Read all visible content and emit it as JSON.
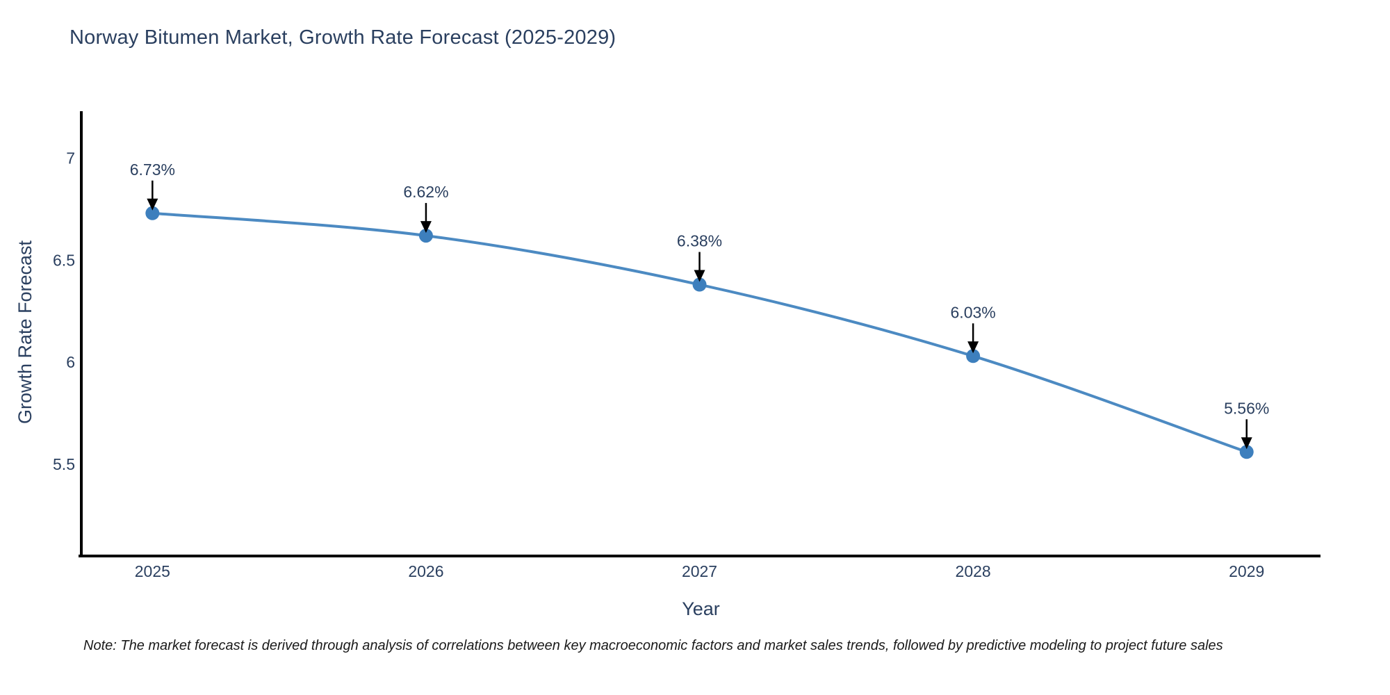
{
  "chart_data": {
    "type": "line",
    "title": "Norway Bitumen Market, Growth Rate Forecast (2025-2029)",
    "x": [
      2025,
      2026,
      2027,
      2028,
      2029
    ],
    "y": [
      6.73,
      6.62,
      6.38,
      6.03,
      5.56
    ],
    "point_labels": [
      "6.73%",
      "6.62%",
      "6.38%",
      "6.03%",
      "5.56%"
    ],
    "xlabel": "Year",
    "ylabel": "Growth Rate Forecast",
    "xtick_labels": [
      "2025",
      "2026",
      "2027",
      "2028",
      "2029"
    ],
    "ytick_labels": [
      "7",
      "6.5",
      "6",
      "5.5"
    ],
    "ytick_values": [
      7,
      6.5,
      6,
      5.5
    ],
    "xlim": [
      2024.74,
      2029.27
    ],
    "ylim": [
      5.05,
      7.23
    ],
    "line_shape": "spline",
    "grid": false,
    "legend_position": "none",
    "colors": {
      "line": "#4c8ac2",
      "marker": "#3d7fbd",
      "axis": "#000000",
      "text": "#2a3f5f",
      "annotation_arrow": "#000000",
      "note_text": "#1a1a1a",
      "background": "#ffffff"
    }
  },
  "note": {
    "text": "Note: The market forecast is derived through analysis of correlations between key macroeconomic factors and market sales trends, followed by predictive modeling to project future sales"
  }
}
